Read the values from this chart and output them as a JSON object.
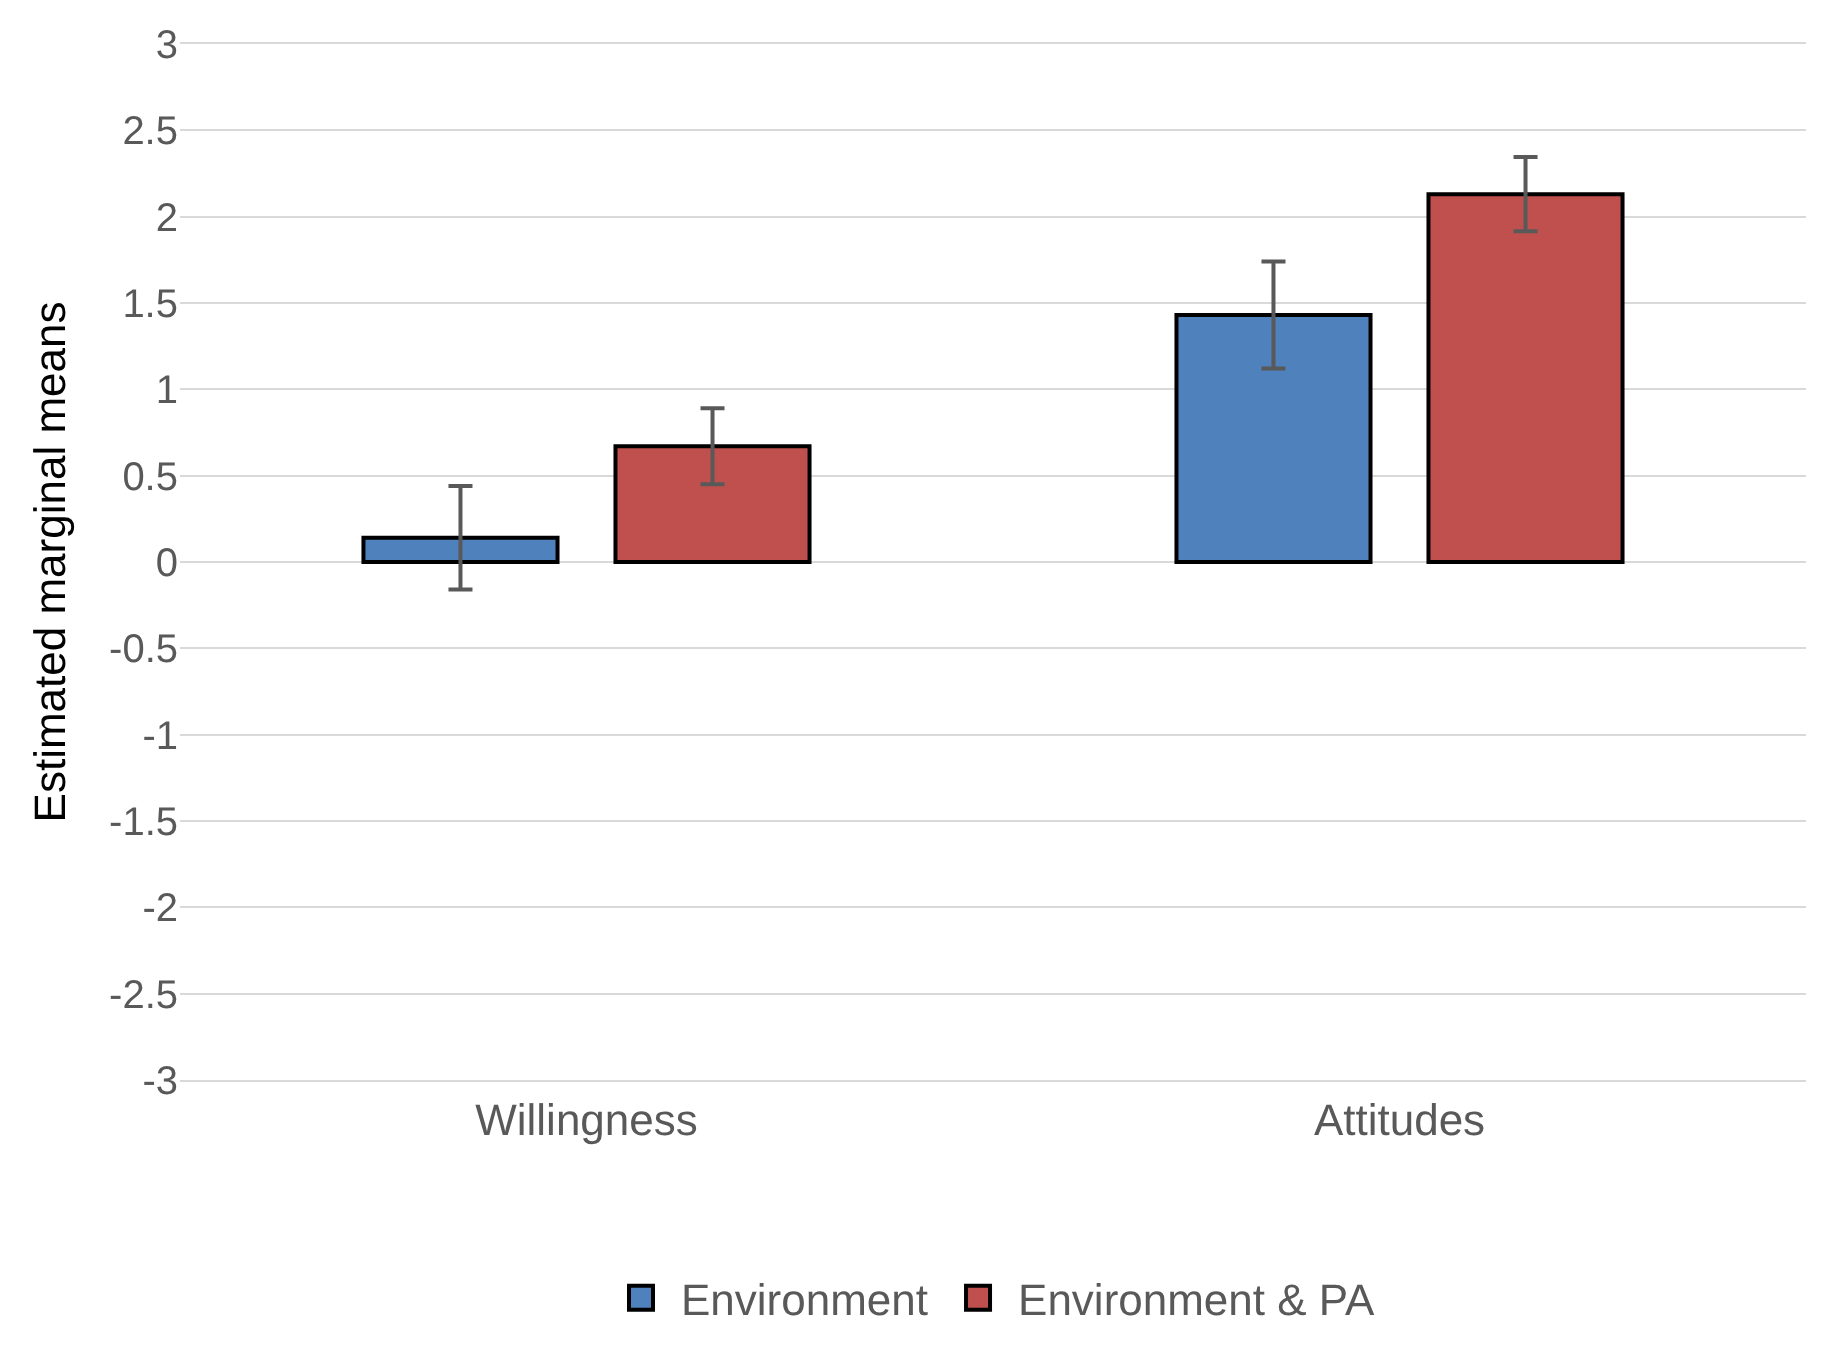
{
  "chart_data": {
    "type": "bar",
    "ylabel": "Estimated marginal means",
    "categories": [
      "Willingness",
      "Attitudes"
    ],
    "series": [
      {
        "name": "Environment",
        "color": "#4f81bd",
        "values": [
          0.14,
          1.43
        ],
        "errors": [
          0.3,
          0.31
        ]
      },
      {
        "name": "Environment & PA",
        "color": "#c0504d",
        "values": [
          0.67,
          2.13
        ],
        "errors": [
          0.22,
          0.215
        ]
      }
    ],
    "ylim": [
      -3,
      3
    ],
    "yticks": [
      -3,
      -2.5,
      -2,
      -1.5,
      -1,
      -0.5,
      0,
      0.5,
      1,
      1.5,
      2,
      2.5,
      3
    ],
    "grid": "y",
    "legend": "bottom"
  }
}
